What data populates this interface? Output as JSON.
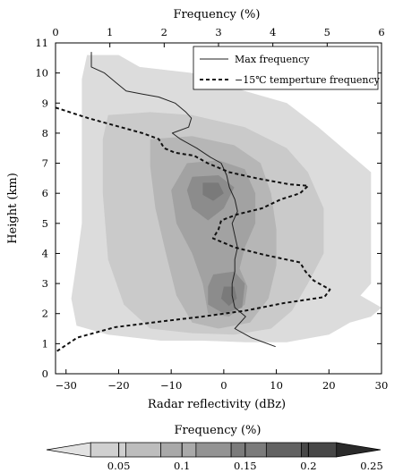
{
  "chart_data": {
    "type": "heatmap",
    "title": "",
    "top_axis": {
      "label": "Frequency  (%)",
      "range": [
        0,
        6
      ],
      "ticks": [
        "0",
        "1",
        "2",
        "3",
        "4",
        "5",
        "6"
      ]
    },
    "x_axis": {
      "label": "Radar reflectivity (dBz)",
      "range": [
        -32,
        30
      ],
      "ticks": [
        "-30",
        "-20",
        "-10",
        "0",
        "10",
        "20",
        "30"
      ],
      "tick_values": [
        -30,
        -20,
        -10,
        0,
        10,
        20,
        30
      ]
    },
    "y_axis": {
      "label": "Height (km)",
      "range": [
        0,
        11
      ],
      "ticks": [
        "0",
        "1",
        "2",
        "3",
        "4",
        "5",
        "6",
        "7",
        "8",
        "9",
        "10",
        "11"
      ]
    },
    "colorbar": {
      "label": "Frequency (%)",
      "range": [
        0,
        0.25
      ],
      "tick_values": [
        0.05,
        0.1,
        0.15,
        0.2,
        0.25
      ],
      "ticks": [
        "0.05",
        "0.1",
        "0.15",
        "0.2",
        "0.25"
      ],
      "colors": [
        "#e2e2e2",
        "#d0d0d0",
        "#bdbdbd",
        "#a9a9a9",
        "#939393",
        "#7b7b7b",
        "#626262",
        "#474747",
        "#2a2a2a"
      ]
    },
    "heatmap_levels": [
      {
        "level": 1,
        "color": "#dcdcdc",
        "poly": [
          [
            -26,
            10.6
          ],
          [
            -20,
            10.6
          ],
          [
            -16,
            10.2
          ],
          [
            -6,
            10.0
          ],
          [
            4,
            9.4
          ],
          [
            12,
            9.0
          ],
          [
            18,
            8.2
          ],
          [
            22,
            7.6
          ],
          [
            28,
            6.7
          ],
          [
            28,
            3.0
          ],
          [
            26,
            2.6
          ],
          [
            30,
            2.2
          ],
          [
            28,
            1.9
          ],
          [
            24,
            1.7
          ],
          [
            20,
            1.3
          ],
          [
            12,
            1.05
          ],
          [
            4,
            1.05
          ],
          [
            -4,
            1.1
          ],
          [
            -12,
            1.1
          ],
          [
            -22,
            1.3
          ],
          [
            -28,
            1.6
          ],
          [
            -29,
            2.5
          ],
          [
            -28,
            3.7
          ],
          [
            -27,
            5.0
          ],
          [
            -27,
            6.8
          ],
          [
            -27,
            8.8
          ],
          [
            -27,
            9.8
          ]
        ]
      },
      {
        "level": 2,
        "color": "#cacaca",
        "poly": [
          [
            -22,
            8.6
          ],
          [
            -14,
            8.7
          ],
          [
            -6,
            8.6
          ],
          [
            4,
            8.2
          ],
          [
            12,
            7.5
          ],
          [
            16,
            6.7
          ],
          [
            19,
            5.5
          ],
          [
            19,
            4.0
          ],
          [
            16,
            3.0
          ],
          [
            13,
            2.1
          ],
          [
            9,
            1.5
          ],
          [
            2,
            1.3
          ],
          [
            -6,
            1.35
          ],
          [
            -14,
            1.5
          ],
          [
            -19,
            2.3
          ],
          [
            -22,
            3.8
          ],
          [
            -23,
            6.0
          ],
          [
            -23,
            7.8
          ]
        ]
      },
      {
        "level": 3,
        "color": "#b6b6b6",
        "poly": [
          [
            -14,
            7.8
          ],
          [
            -6,
            7.9
          ],
          [
            2,
            7.6
          ],
          [
            7,
            7.0
          ],
          [
            9,
            6.0
          ],
          [
            10,
            4.8
          ],
          [
            10,
            3.6
          ],
          [
            8.5,
            2.5
          ],
          [
            5,
            1.7
          ],
          [
            -1,
            1.5
          ],
          [
            -6,
            1.7
          ],
          [
            -9,
            2.6
          ],
          [
            -11,
            4.0
          ],
          [
            -13,
            5.5
          ],
          [
            -14,
            6.9
          ]
        ]
      },
      {
        "level": 4,
        "color": "#a2a2a2",
        "poly": [
          [
            -7,
            7.0
          ],
          [
            -1,
            7.1
          ],
          [
            4,
            6.8
          ],
          [
            6,
            6.0
          ],
          [
            6,
            5.0
          ],
          [
            4,
            4.2
          ],
          [
            3,
            3.5
          ],
          [
            4.5,
            2.9
          ],
          [
            4,
            2.3
          ],
          [
            1,
            1.9
          ],
          [
            -3,
            2.0
          ],
          [
            -4,
            3.0
          ],
          [
            -6,
            4.0
          ],
          [
            -9,
            5.0
          ],
          [
            -10,
            6.1
          ]
        ]
      },
      {
        "level": 5,
        "color": "#8c8c8c",
        "poly": [
          [
            -6,
            6.55
          ],
          [
            -1,
            6.6
          ],
          [
            2,
            6.2
          ],
          [
            0,
            5.5
          ],
          [
            -3,
            5.1
          ],
          [
            -6,
            5.5
          ],
          [
            -7,
            6.1
          ]
        ]
      },
      {
        "level": 5,
        "color": "#8c8c8c",
        "poly": [
          [
            -2,
            3.3
          ],
          [
            2,
            3.4
          ],
          [
            4,
            3.0
          ],
          [
            3.5,
            2.2
          ],
          [
            0,
            2.0
          ],
          [
            -3,
            2.3
          ],
          [
            -3,
            2.9
          ]
        ]
      },
      {
        "level": 6,
        "color": "#7a7a7a",
        "poly": [
          [
            -4,
            6.35
          ],
          [
            -1,
            6.35
          ],
          [
            0,
            6.0
          ],
          [
            -2,
            5.75
          ],
          [
            -4,
            5.95
          ]
        ]
      },
      {
        "level": 6,
        "color": "#7a7a7a",
        "poly": [
          [
            0,
            2.9
          ],
          [
            2,
            2.9
          ],
          [
            2.5,
            2.5
          ],
          [
            1,
            2.25
          ],
          [
            -0.5,
            2.5
          ]
        ]
      }
    ],
    "series": [
      {
        "name": "Max frequency",
        "style": "solid",
        "x_axis": "top",
        "points": [
          [
            0.66,
            10.7
          ],
          [
            0.66,
            10.2
          ],
          [
            0.9,
            10.0
          ],
          [
            1.1,
            9.7
          ],
          [
            1.3,
            9.4
          ],
          [
            1.6,
            9.3
          ],
          [
            1.9,
            9.2
          ],
          [
            2.2,
            9.0
          ],
          [
            2.4,
            8.7
          ],
          [
            2.5,
            8.5
          ],
          [
            2.45,
            8.2
          ],
          [
            2.15,
            8.0
          ],
          [
            2.3,
            7.8
          ],
          [
            2.6,
            7.5
          ],
          [
            2.85,
            7.2
          ],
          [
            3.05,
            7.0
          ],
          [
            3.15,
            6.6
          ],
          [
            3.2,
            6.2
          ],
          [
            3.3,
            5.8
          ],
          [
            3.35,
            5.4
          ],
          [
            3.25,
            5.0
          ],
          [
            3.3,
            4.6
          ],
          [
            3.35,
            4.2
          ],
          [
            3.3,
            3.8
          ],
          [
            3.3,
            3.4
          ],
          [
            3.25,
            3.0
          ],
          [
            3.25,
            2.6
          ],
          [
            3.3,
            2.2
          ],
          [
            3.5,
            1.9
          ],
          [
            3.3,
            1.5
          ],
          [
            3.6,
            1.2
          ],
          [
            4.05,
            0.9
          ]
        ]
      },
      {
        "name": "−15℃  temperture frequency",
        "style": "dashed",
        "x_axis": "top",
        "points": [
          [
            0.0,
            8.85
          ],
          [
            0.6,
            8.5
          ],
          [
            1.2,
            8.2
          ],
          [
            1.6,
            8.0
          ],
          [
            1.9,
            7.8
          ],
          [
            2.0,
            7.5
          ],
          [
            2.2,
            7.35
          ],
          [
            2.55,
            7.25
          ],
          [
            2.8,
            7.0
          ],
          [
            3.2,
            6.7
          ],
          [
            3.7,
            6.5
          ],
          [
            4.3,
            6.3
          ],
          [
            4.65,
            6.25
          ],
          [
            4.5,
            6.0
          ],
          [
            4.15,
            5.8
          ],
          [
            3.8,
            5.5
          ],
          [
            3.35,
            5.3
          ],
          [
            3.05,
            5.1
          ],
          [
            3.0,
            4.8
          ],
          [
            2.9,
            4.5
          ],
          [
            3.3,
            4.2
          ],
          [
            3.85,
            3.95
          ],
          [
            4.5,
            3.7
          ],
          [
            4.6,
            3.4
          ],
          [
            4.75,
            3.1
          ],
          [
            5.05,
            2.8
          ],
          [
            4.95,
            2.55
          ],
          [
            4.2,
            2.35
          ],
          [
            3.5,
            2.1
          ],
          [
            2.7,
            1.9
          ],
          [
            2.0,
            1.75
          ],
          [
            1.1,
            1.55
          ],
          [
            0.4,
            1.2
          ],
          [
            0.0,
            0.72
          ]
        ]
      }
    ],
    "legend": {
      "position": "top-right",
      "entries": [
        "Max frequency",
        "−15℃  temperture frequency"
      ]
    }
  }
}
